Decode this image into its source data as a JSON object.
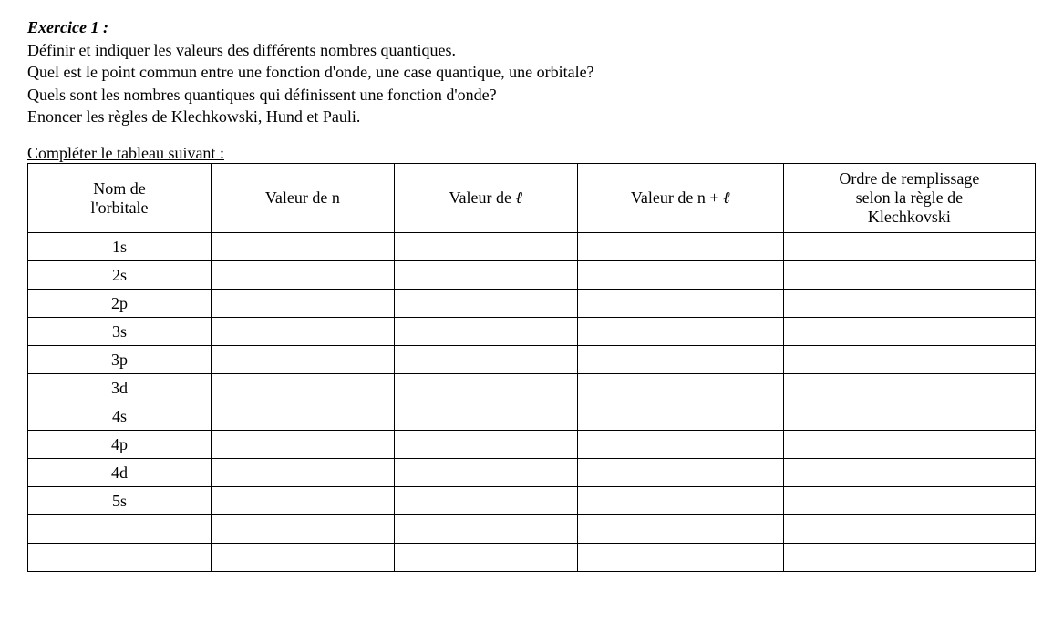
{
  "exercise": {
    "title": "Exercice 1 :",
    "lines": [
      "Définir et indiquer les valeurs des différents nombres quantiques.",
      "Quel est le point commun entre une fonction d'onde, une case quantique, une orbitale?",
      "Quels sont les nombres quantiques qui définissent une fonction d'onde?",
      "Enoncer les règles de Klechkowski, Hund et Pauli."
    ],
    "table_caption": "Compléter le tableau suivant :"
  },
  "table": {
    "headers": {
      "col1_line1": "Nom de",
      "col1_line2": "l'orbitale",
      "col2": "Valeur de n",
      "col3_prefix": "Valeur de ",
      "col3_ell": "ℓ",
      "col4_prefix": "Valeur de n + ",
      "col4_ell": "ℓ",
      "col5_line1": "Ordre de remplissage",
      "col5_line2": "selon la règle de",
      "col5_line3": "Klechkovski"
    },
    "rows": [
      {
        "orbital": "1s",
        "n": "",
        "l": "",
        "npl": "",
        "order": ""
      },
      {
        "orbital": "2s",
        "n": "",
        "l": "",
        "npl": "",
        "order": ""
      },
      {
        "orbital": "2p",
        "n": "",
        "l": "",
        "npl": "",
        "order": ""
      },
      {
        "orbital": "3s",
        "n": "",
        "l": "",
        "npl": "",
        "order": ""
      },
      {
        "orbital": "3p",
        "n": "",
        "l": "",
        "npl": "",
        "order": ""
      },
      {
        "orbital": "3d",
        "n": "",
        "l": "",
        "npl": "",
        "order": ""
      },
      {
        "orbital": "4s",
        "n": "",
        "l": "",
        "npl": "",
        "order": ""
      },
      {
        "orbital": "4p",
        "n": "",
        "l": "",
        "npl": "",
        "order": ""
      },
      {
        "orbital": "4d",
        "n": "",
        "l": "",
        "npl": "",
        "order": ""
      },
      {
        "orbital": "5s",
        "n": "",
        "l": "",
        "npl": "",
        "order": ""
      },
      {
        "orbital": "",
        "n": "",
        "l": "",
        "npl": "",
        "order": ""
      },
      {
        "orbital": "",
        "n": "",
        "l": "",
        "npl": "",
        "order": ""
      }
    ]
  }
}
